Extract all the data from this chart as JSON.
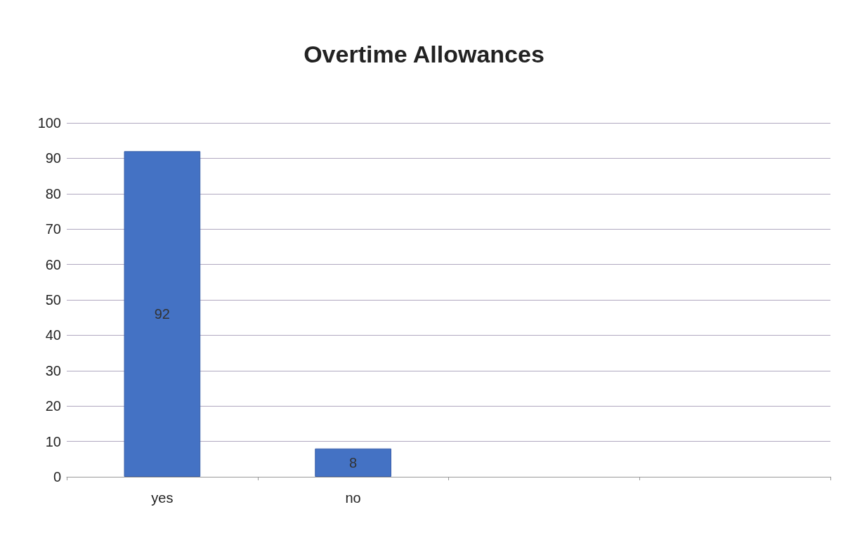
{
  "chart_data": {
    "type": "bar",
    "title": "Overtime Allowances",
    "categories": [
      "yes",
      "no",
      null,
      null
    ],
    "values": [
      92,
      8,
      null,
      null
    ],
    "color": "#4472c4",
    "ylim": [
      0,
      100
    ],
    "yticks": [
      0,
      10,
      20,
      30,
      40,
      50,
      60,
      70,
      80,
      90,
      100
    ],
    "grid": "y",
    "data_labels": true
  }
}
